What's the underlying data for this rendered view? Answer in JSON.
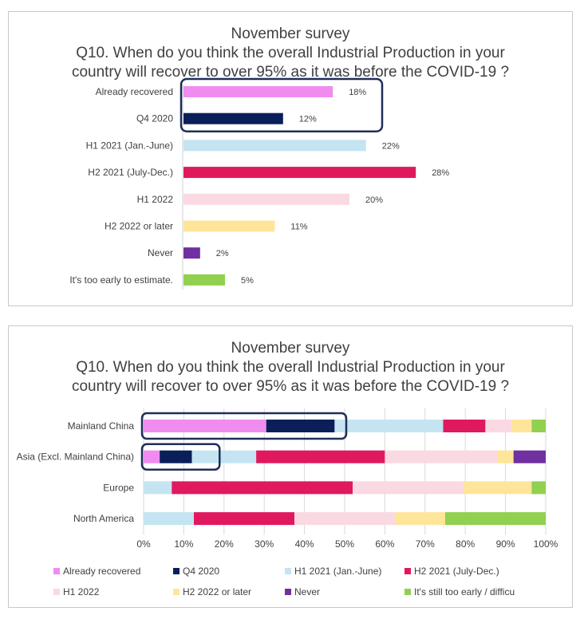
{
  "chart_data": [
    {
      "type": "bar",
      "orientation": "horizontal",
      "title": "November survey",
      "subtitle_lines": [
        "Q10. When do you think the overall Industrial Production in your",
        "country will recover to over 95% as it was before the COVID-19 ?"
      ],
      "categories": [
        "Already recovered",
        "Q4 2020",
        "H1 2021 (Jan.-June)",
        "H2 2021 (July-Dec.)",
        "H1 2022",
        "H2 2022 or later",
        "Never",
        "It's too early to estimate."
      ],
      "values": [
        18,
        12,
        22,
        28,
        20,
        11,
        2,
        5
      ],
      "value_labels": [
        "18%",
        "12%",
        "22%",
        "28%",
        "20%",
        "11%",
        "2%",
        "5%"
      ],
      "colors": [
        "#f08cf0",
        "#0a1e5a",
        "#c5e4f2",
        "#e0195f",
        "#fad9e3",
        "#ffe599",
        "#7030a0",
        "#92d050"
      ],
      "highlighted_categories": [
        "Already recovered",
        "Q4 2020"
      ],
      "highlight_color": "#1f2d5a"
    },
    {
      "type": "bar",
      "orientation": "horizontal",
      "stacked": "percent",
      "title": "November survey",
      "subtitle_lines": [
        "Q10. When do you think the overall Industrial Production in your",
        "country will recover to over 95% as it was before the COVID-19 ?"
      ],
      "categories": [
        "Mainland China",
        "Asia (Excl. Mainland China)",
        "Europe",
        "North America"
      ],
      "x_ticks": [
        "0%",
        "10%",
        "20%",
        "30%",
        "40%",
        "50%",
        "60%",
        "70%",
        "80%",
        "90%",
        "100%"
      ],
      "xlim": [
        0,
        100
      ],
      "grid": true,
      "legend_position": "bottom",
      "series": [
        {
          "name": "Already recovered",
          "color": "#f08cf0",
          "values": [
            30.5,
            4,
            0,
            0
          ]
        },
        {
          "name": "Q4 2020",
          "color": "#0a1e5a",
          "values": [
            17,
            8,
            0,
            0
          ]
        },
        {
          "name": "H1 2021 (Jan.-June)",
          "color": "#c5e4f2",
          "values": [
            27,
            16,
            7,
            12.5
          ]
        },
        {
          "name": "H2 2021 (July-Dec.)",
          "color": "#e0195f",
          "values": [
            10.5,
            32,
            45,
            25
          ]
        },
        {
          "name": "H1 2022",
          "color": "#fad9e3",
          "values": [
            6.5,
            28,
            27.5,
            25
          ]
        },
        {
          "name": "H2 2022 or later",
          "color": "#ffe599",
          "values": [
            5,
            4,
            17,
            12.5
          ]
        },
        {
          "name": "Never",
          "color": "#7030a0",
          "values": [
            0,
            8,
            0,
            0
          ]
        },
        {
          "name": "It's still too early / difficu",
          "color": "#92d050",
          "values": [
            3.5,
            0,
            3.5,
            25
          ]
        }
      ],
      "highlighted_categories": [
        "Mainland China",
        "Asia (Excl. Mainland China)"
      ],
      "highlight_color": "#1f2d5a"
    }
  ]
}
